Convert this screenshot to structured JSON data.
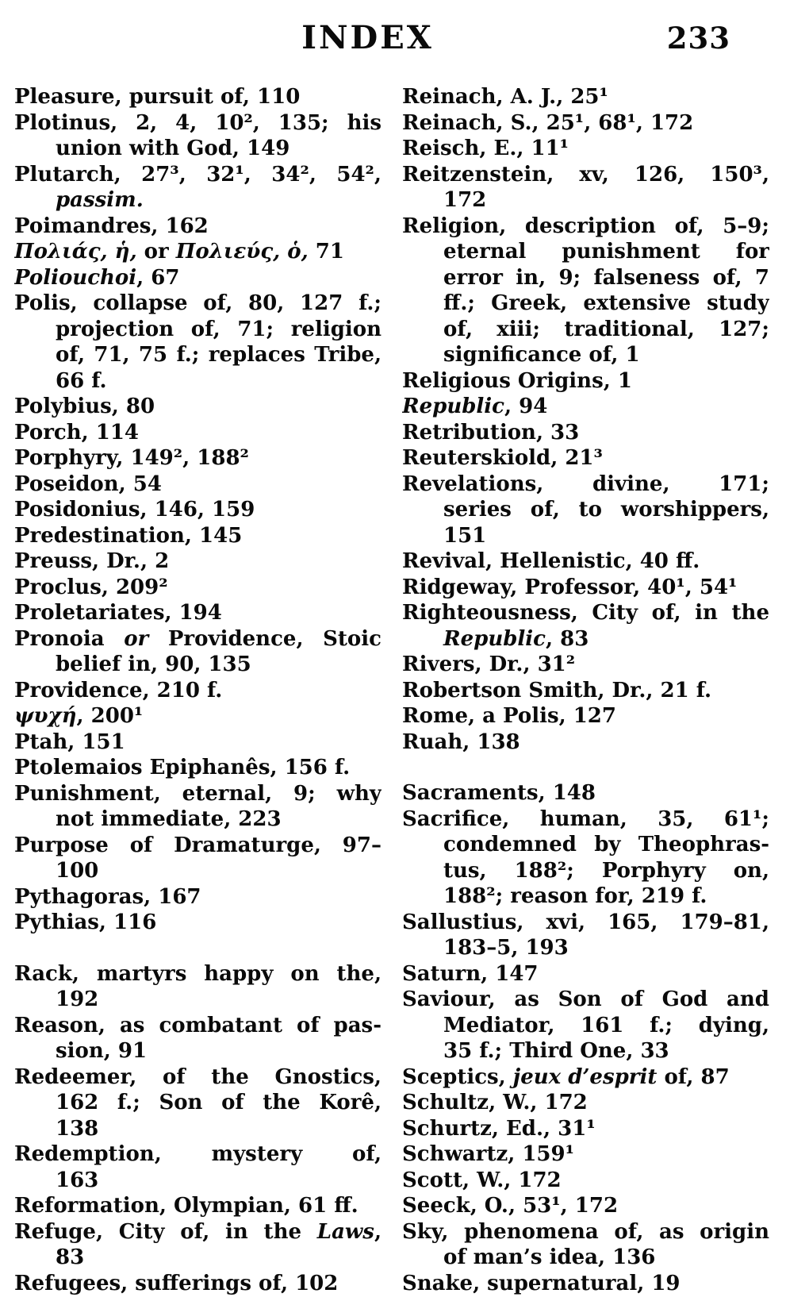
{
  "header": {
    "title": "INDEX",
    "page_number": "233"
  },
  "columns": {
    "left": {
      "lines": [
        {
          "s": [
            [
              "Pleasure, pursuit of, 110",
              0
            ]
          ]
        },
        {
          "jst": 1,
          "s": [
            [
              "Plotinus, 2, 4, 10², 135; his",
              0
            ]
          ]
        },
        {
          "ind": 1,
          "s": [
            [
              "union with God, 149",
              0
            ]
          ]
        },
        {
          "jst": 1,
          "s": [
            [
              "Plutarch, 27³, 32¹, 34², 54²,",
              0
            ]
          ]
        },
        {
          "ind": 1,
          "s": [
            [
              "passim.",
              1
            ]
          ]
        },
        {
          "s": [
            [
              "Poimandres, 162",
              0
            ]
          ]
        },
        {
          "s": [
            [
              "Πολιάς, ἡ,",
              1
            ],
            [
              " or ",
              0
            ],
            [
              "Πολιεύς, ὁ,",
              1
            ],
            [
              " 71",
              0
            ]
          ]
        },
        {
          "s": [
            [
              "Poliouchoi",
              1
            ],
            [
              ", 67",
              0
            ]
          ]
        },
        {
          "jst": 1,
          "s": [
            [
              "Polis, collapse of, 80, 127 f.;",
              0
            ]
          ]
        },
        {
          "ind": 1,
          "jst": 1,
          "s": [
            [
              "projection of, 71; religion",
              0
            ]
          ]
        },
        {
          "ind": 1,
          "jst": 1,
          "s": [
            [
              "of, 71, 75 f.; replaces Tribe,",
              0
            ]
          ]
        },
        {
          "ind": 1,
          "s": [
            [
              "66 f.",
              0
            ]
          ]
        },
        {
          "s": [
            [
              "Polybius, 80",
              0
            ]
          ]
        },
        {
          "s": [
            [
              "Porch, 114",
              0
            ]
          ]
        },
        {
          "s": [
            [
              "Porphyry, 149², 188²",
              0
            ]
          ]
        },
        {
          "s": [
            [
              "Poseidon, 54",
              0
            ]
          ]
        },
        {
          "s": [
            [
              "Posidonius, 146, 159",
              0
            ]
          ]
        },
        {
          "s": [
            [
              "Predestination, 145",
              0
            ]
          ]
        },
        {
          "s": [
            [
              "Preuss, Dr., 2",
              0
            ]
          ]
        },
        {
          "s": [
            [
              "Proclus, 209²",
              0
            ]
          ]
        },
        {
          "s": [
            [
              "Proletariates, 194",
              0
            ]
          ]
        },
        {
          "jst": 1,
          "s": [
            [
              "Pronoia ",
              0
            ],
            [
              "or",
              1
            ],
            [
              " Providence, Stoic",
              0
            ]
          ]
        },
        {
          "ind": 1,
          "s": [
            [
              "belief in, 90, 135",
              0
            ]
          ]
        },
        {
          "s": [
            [
              "Providence, 210 f.",
              0
            ]
          ]
        },
        {
          "s": [
            [
              "ψυχή",
              1
            ],
            [
              ", 200¹",
              0
            ]
          ]
        },
        {
          "s": [
            [
              "Ptah, 151",
              0
            ]
          ]
        },
        {
          "s": [
            [
              "Ptolemaios Epiphanês, 156 f.",
              0
            ]
          ]
        },
        {
          "jst": 1,
          "s": [
            [
              "Punishment, eternal, 9; why",
              0
            ]
          ]
        },
        {
          "ind": 1,
          "s": [
            [
              "not immediate, 223",
              0
            ]
          ]
        },
        {
          "jst": 1,
          "s": [
            [
              "Purpose of Dramaturge, 97–",
              0
            ]
          ]
        },
        {
          "ind": 1,
          "s": [
            [
              "100",
              0
            ]
          ]
        },
        {
          "s": [
            [
              "Pythagoras, 167",
              0
            ]
          ]
        },
        {
          "s": [
            [
              "Pythias, 116",
              0
            ]
          ]
        },
        {
          "gap": 1
        },
        {
          "jst": 1,
          "s": [
            [
              "Rack, martyrs happy on the,",
              0
            ]
          ]
        },
        {
          "ind": 1,
          "s": [
            [
              "192",
              0
            ]
          ]
        },
        {
          "jst": 1,
          "s": [
            [
              "Reason, as combatant of pas-",
              0
            ]
          ]
        },
        {
          "ind": 1,
          "s": [
            [
              "sion, 91",
              0
            ]
          ]
        },
        {
          "jst": 1,
          "s": [
            [
              "Redeemer, of the Gnostics,",
              0
            ]
          ]
        },
        {
          "ind": 1,
          "jst": 1,
          "s": [
            [
              "162 f.; Son of the Korê,",
              0
            ]
          ]
        },
        {
          "ind": 1,
          "s": [
            [
              "138",
              0
            ]
          ]
        },
        {
          "jst": 1,
          "s": [
            [
              "Redemption, mystery of,",
              0
            ]
          ]
        },
        {
          "ind": 1,
          "s": [
            [
              "163",
              0
            ]
          ]
        },
        {
          "s": [
            [
              "Reformation, Olympian, 61 ff.",
              0
            ]
          ]
        },
        {
          "jst": 1,
          "s": [
            [
              "Refuge, City of, in the ",
              0
            ],
            [
              "Laws",
              1
            ],
            [
              ",",
              0
            ]
          ]
        },
        {
          "ind": 1,
          "s": [
            [
              "83",
              0
            ]
          ]
        },
        {
          "s": [
            [
              "Refugees, sufferings of, 102",
              0
            ]
          ]
        }
      ]
    },
    "right": {
      "lines": [
        {
          "s": [
            [
              "Reinach, A. J., 25¹",
              0
            ]
          ]
        },
        {
          "s": [
            [
              "Reinach, S., 25¹, 68¹, 172",
              0
            ]
          ]
        },
        {
          "s": [
            [
              "Reisch, E., 11¹",
              0
            ]
          ]
        },
        {
          "jst": 1,
          "s": [
            [
              "Reitzenstein, xv, 126, 150³,",
              0
            ]
          ]
        },
        {
          "ind": 1,
          "s": [
            [
              "172",
              0
            ]
          ]
        },
        {
          "jst": 1,
          "s": [
            [
              "Religion, description of, 5–9;",
              0
            ]
          ]
        },
        {
          "ind": 1,
          "jst": 1,
          "s": [
            [
              "eternal punishment for",
              0
            ]
          ]
        },
        {
          "ind": 1,
          "jst": 1,
          "s": [
            [
              "error in, 9; falseness of, 7",
              0
            ]
          ]
        },
        {
          "ind": 1,
          "jst": 1,
          "s": [
            [
              "ff.; Greek, extensive study",
              0
            ]
          ]
        },
        {
          "ind": 1,
          "jst": 1,
          "s": [
            [
              "of, xiii; traditional, 127;",
              0
            ]
          ]
        },
        {
          "ind": 1,
          "s": [
            [
              "significance of, 1",
              0
            ]
          ]
        },
        {
          "s": [
            [
              "Religious Origins, 1",
              0
            ]
          ]
        },
        {
          "s": [
            [
              "Republic",
              1
            ],
            [
              ", 94",
              0
            ]
          ]
        },
        {
          "s": [
            [
              "Retribution, 33",
              0
            ]
          ]
        },
        {
          "s": [
            [
              "Reuterskiold, 21³",
              0
            ]
          ]
        },
        {
          "jst": 1,
          "s": [
            [
              "Revelations, divine, 171;",
              0
            ]
          ]
        },
        {
          "ind": 1,
          "jst": 1,
          "s": [
            [
              "series of, to worshippers,",
              0
            ]
          ]
        },
        {
          "ind": 1,
          "s": [
            [
              "151",
              0
            ]
          ]
        },
        {
          "s": [
            [
              "Revival, Hellenistic, 40 ff.",
              0
            ]
          ]
        },
        {
          "s": [
            [
              "Ridgeway, Professor, 40¹, 54¹",
              0
            ]
          ]
        },
        {
          "jst": 1,
          "s": [
            [
              "Righteousness, City of, in the",
              0
            ]
          ]
        },
        {
          "ind": 1,
          "s": [
            [
              "Republic",
              1
            ],
            [
              ", 83",
              0
            ]
          ]
        },
        {
          "s": [
            [
              "Rivers, Dr., 31²",
              0
            ]
          ]
        },
        {
          "s": [
            [
              "Robertson Smith, Dr., 21 f.",
              0
            ]
          ]
        },
        {
          "s": [
            [
              "Rome, a Polis, 127",
              0
            ]
          ]
        },
        {
          "s": [
            [
              "Ruah, 138",
              0
            ]
          ]
        },
        {
          "gap": 1
        },
        {
          "s": [
            [
              "Sacraments, 148",
              0
            ]
          ]
        },
        {
          "jst": 1,
          "s": [
            [
              "Sacrifice, human, 35, 61¹;",
              0
            ]
          ]
        },
        {
          "ind": 1,
          "jst": 1,
          "s": [
            [
              "condemned by Theophras-",
              0
            ]
          ]
        },
        {
          "ind": 1,
          "jst": 1,
          "s": [
            [
              "tus, 188²; Porphyry on,",
              0
            ]
          ]
        },
        {
          "ind": 1,
          "s": [
            [
              "188²; reason for, 219 f.",
              0
            ]
          ]
        },
        {
          "jst": 1,
          "s": [
            [
              "Sallustius, xvi, 165, 179–81,",
              0
            ]
          ]
        },
        {
          "ind": 1,
          "s": [
            [
              "183–5, 193",
              0
            ]
          ]
        },
        {
          "s": [
            [
              "Saturn, 147",
              0
            ]
          ]
        },
        {
          "jst": 1,
          "s": [
            [
              "Saviour, as Son of God and",
              0
            ]
          ]
        },
        {
          "ind": 1,
          "jst": 1,
          "s": [
            [
              "Mediator, 161 f.; dying,",
              0
            ]
          ]
        },
        {
          "ind": 1,
          "s": [
            [
              "35 f.; Third One, 33",
              0
            ]
          ]
        },
        {
          "s": [
            [
              "Sceptics, ",
              0
            ],
            [
              "jeux d’esprit",
              1
            ],
            [
              " of, 87",
              0
            ]
          ]
        },
        {
          "s": [
            [
              "Schultz, W., 172",
              0
            ]
          ]
        },
        {
          "s": [
            [
              "Schurtz, Ed., 31¹",
              0
            ]
          ]
        },
        {
          "s": [
            [
              "Schwartz, 159¹",
              0
            ]
          ]
        },
        {
          "s": [
            [
              "Scott, W., 172",
              0
            ]
          ]
        },
        {
          "s": [
            [
              "Seeck, O., 53¹, 172",
              0
            ]
          ]
        },
        {
          "jst": 1,
          "s": [
            [
              "Sky, phenomena of, as origin",
              0
            ]
          ]
        },
        {
          "ind": 1,
          "s": [
            [
              "of man’s idea, 136",
              0
            ]
          ]
        },
        {
          "s": [
            [
              "Snake, supernatural, 19",
              0
            ]
          ]
        }
      ]
    }
  }
}
